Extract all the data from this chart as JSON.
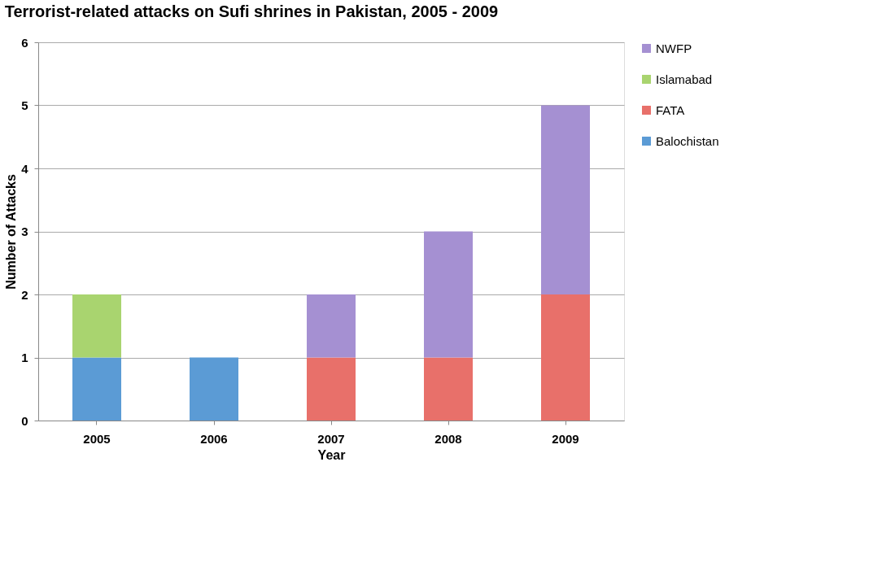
{
  "chart_data": {
    "type": "bar",
    "title": "Terrorist-related attacks on Sufi shrines in Pakistan, 2005 - 2009",
    "xlabel": "Year",
    "ylabel": "Number of Attacks",
    "categories": [
      "2005",
      "2006",
      "2007",
      "2008",
      "2009"
    ],
    "series": [
      {
        "name": "Balochistan",
        "color": "#5b9bd5",
        "values": [
          1,
          1,
          null,
          null,
          null
        ]
      },
      {
        "name": "FATA",
        "color": "#e8706a",
        "values": [
          null,
          null,
          1,
          1,
          2
        ]
      },
      {
        "name": "Islamabad",
        "color": "#a9d46f",
        "values": [
          1,
          null,
          null,
          null,
          null
        ]
      },
      {
        "name": "NWFP",
        "color": "#a590d2",
        "values": [
          null,
          null,
          1,
          2,
          3
        ]
      }
    ],
    "stacked": true,
    "ylim": [
      0,
      6
    ],
    "yticks": [
      0,
      1,
      2,
      3,
      4,
      5,
      6
    ],
    "grid": "y",
    "legend": "right"
  }
}
